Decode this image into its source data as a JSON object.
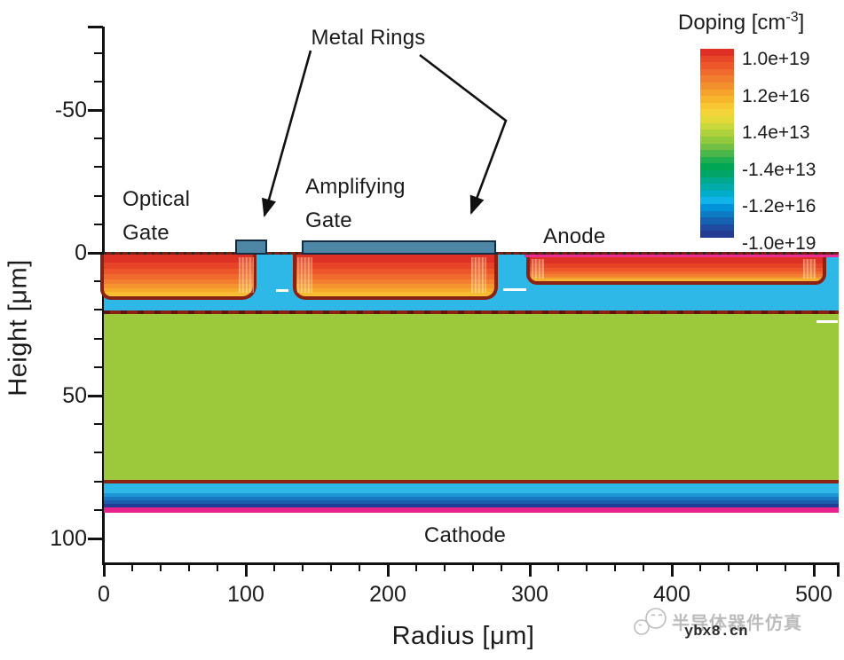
{
  "figure": {
    "y_axis": {
      "label": "Height [μm]",
      "tick_labels": [
        "-50",
        "0",
        "50",
        "100"
      ]
    },
    "x_axis": {
      "label": "Radius [μm]",
      "tick_labels": [
        "0",
        "100",
        "200",
        "300",
        "400",
        "500"
      ]
    },
    "annotations": {
      "metal_rings": "Metal Rings",
      "optical_gate": [
        "Optical",
        "Gate"
      ],
      "amplifying_gate": [
        "Amplifying",
        "Gate"
      ],
      "anode": "Anode",
      "cathode": "Cathode"
    },
    "legend": {
      "title_prefix": "Doping [cm",
      "title_sup": "-3",
      "title_suffix": "]",
      "tick_labels": [
        "1.0e+19",
        "1.2e+16",
        "1.4e+13",
        "-1.4e+13",
        "-1.2e+16",
        "-1.0e+19"
      ],
      "band_colors": [
        "#e02f25",
        "#e74627",
        "#ec5829",
        "#ef6a2c",
        "#f17d2e",
        "#f3902e",
        "#f5a32d",
        "#f7b52e",
        "#f8c734",
        "#f5d439",
        "#e3da39",
        "#c9d83a",
        "#aed13c",
        "#92ca3e",
        "#72c043",
        "#4bb74a",
        "#1fae50",
        "#00a753",
        "#00a567",
        "#00a88d",
        "#00abaa",
        "#00aecb",
        "#0fb3e8",
        "#0093da",
        "#0d7cc4",
        "#1662b2",
        "#1e4aa0",
        "#243c92"
      ]
    },
    "colors": {
      "implant_top": "#dc3124",
      "implant_bottom": "#fad83d",
      "junction_boundary": "#8a2214",
      "n_layer_cyan": "#2eb8e8",
      "bulk_green": "#9cc93c",
      "buffer_blue_dark": "#223e94",
      "contact_magenta": "#ee2b93",
      "metal_fill": "#4e86a5",
      "metal_outline": "#152c42"
    }
  },
  "watermark": {
    "brand": "半导体器件仿真",
    "site": "ybx8.cn"
  },
  "chart_data": {
    "type": "heatmap",
    "title": "",
    "xlabel": "Radius [μm]",
    "ylabel": "Height [μm]",
    "xlim": [
      0,
      518
    ],
    "ylim": [
      110,
      -80
    ],
    "x_ticks": [
      0,
      100,
      200,
      300,
      400,
      500
    ],
    "y_ticks": [
      -50,
      0,
      50,
      100
    ],
    "colorbar": {
      "title": "Doping [cm-3]",
      "tick_labels": [
        "1.0e+19",
        "1.2e+16",
        "1.4e+13",
        "-1.4e+13",
        "-1.2e+16",
        "-1.0e+19"
      ],
      "scale": "rainbow red(+1.0e+19) to navy(-1.0e+19)"
    },
    "regions": [
      {
        "name": "optical-gate p+ implant",
        "r_um": [
          0,
          107
        ],
        "depth_um": [
          0,
          17
        ],
        "doping": "p+ (red-yellow gradient)"
      },
      {
        "name": "amplifying-gate p+ implant",
        "r_um": [
          133,
          277
        ],
        "depth_um": [
          0,
          17
        ],
        "doping": "p+ (red-yellow gradient)"
      },
      {
        "name": "anode p+ implant",
        "r_um": [
          297,
          509
        ],
        "depth_um": [
          1,
          12
        ],
        "doping": "p+ (red-yellow gradient)"
      },
      {
        "name": "anode surface p++ strip",
        "r_um": [
          296,
          518
        ],
        "depth_um": [
          0,
          1.5
        ],
        "doping": "p++ (magenta)"
      },
      {
        "name": "n surface layer",
        "r_um": [
          0,
          518
        ],
        "depth_um": [
          0,
          21
        ],
        "doping": "n (cyan background)"
      },
      {
        "name": "n- drift bulk",
        "r_um": [
          0,
          518
        ],
        "depth_um": [
          21,
          79
        ],
        "doping": "n- (green)"
      },
      {
        "name": "n buffer",
        "r_um": [
          0,
          518
        ],
        "depth_um": [
          79,
          89
        ],
        "doping": "n gradient (cyan to navy)"
      },
      {
        "name": "cathode n++ contact layer",
        "r_um": [
          0,
          518
        ],
        "depth_um": [
          89,
          91
        ],
        "doping": "n++ (magenta)"
      },
      {
        "name": "metal ring 1",
        "r_um": [
          92,
          115
        ],
        "depth_um": [
          -5,
          0
        ],
        "doping": "metal electrode"
      },
      {
        "name": "amplifying gate metal / metal ring 2",
        "r_um": [
          139,
          277
        ],
        "depth_um": [
          -5,
          0
        ],
        "doping": "metal electrode"
      }
    ]
  }
}
